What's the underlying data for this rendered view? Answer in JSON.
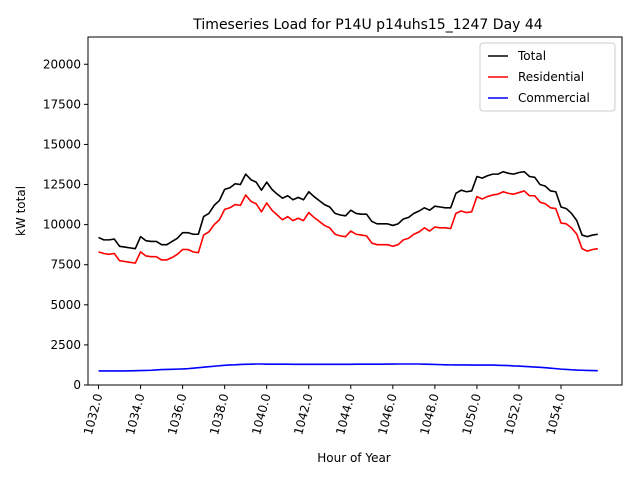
{
  "chart_data": {
    "type": "line",
    "title": "Timeseries Load for P14U p14uhs15_1247  Day 44",
    "xlabel": "Hour of Year",
    "ylabel": "kW total",
    "xlim": [
      1031.5,
      1056.9
    ],
    "ylim": [
      0,
      21700
    ],
    "xticks": [
      1032,
      1034,
      1036,
      1038,
      1040,
      1042,
      1044,
      1046,
      1048,
      1050,
      1052,
      1054
    ],
    "xtick_labels": [
      "1032.0",
      "1034.0",
      "1036.0",
      "1038.0",
      "1040.0",
      "1042.0",
      "1044.0",
      "1046.0",
      "1048.0",
      "1050.0",
      "1052.0",
      "1054.0"
    ],
    "yticks": [
      0,
      2500,
      5000,
      7500,
      10000,
      12500,
      15000,
      17500,
      20000
    ],
    "ytick_labels": [
      "0",
      "2500",
      "5000",
      "7500",
      "10000",
      "12500",
      "15000",
      "17500",
      "20000"
    ],
    "x_start": 1032.0,
    "x_step": 0.25,
    "legend_position": "upper right",
    "series": [
      {
        "name": "Total",
        "color": "#000000",
        "values": [
          9200,
          9050,
          9050,
          9100,
          8650,
          8600,
          8550,
          8500,
          9250,
          9000,
          8950,
          8950,
          8750,
          8750,
          8950,
          9150,
          9500,
          9500,
          9400,
          9400,
          10500,
          10700,
          11200,
          11500,
          12200,
          12300,
          12550,
          12500,
          13150,
          12800,
          12650,
          12150,
          12650,
          12200,
          11900,
          11650,
          11800,
          11550,
          11700,
          11550,
          12050,
          11750,
          11500,
          11250,
          11100,
          10700,
          10600,
          10550,
          10900,
          10700,
          10650,
          10650,
          10200,
          10050,
          10050,
          10050,
          9950,
          10050,
          10350,
          10450,
          10700,
          10850,
          11050,
          10900,
          11150,
          11100,
          11050,
          11050,
          11950,
          12150,
          12050,
          12100,
          13000,
          12900,
          13050,
          13150,
          13150,
          13300,
          13200,
          13150,
          13250,
          13300,
          13000,
          12950,
          12500,
          12400,
          12100,
          12050,
          11100,
          11000,
          10700,
          10250,
          9350,
          9250,
          9350,
          9400
        ]
      },
      {
        "name": "Residential",
        "color": "#ff0000",
        "values": [
          8300,
          8200,
          8150,
          8200,
          7750,
          7700,
          7650,
          7600,
          8300,
          8050,
          8000,
          8000,
          7800,
          7800,
          7950,
          8150,
          8450,
          8450,
          8300,
          8250,
          9350,
          9550,
          10000,
          10300,
          10950,
          11050,
          11250,
          11200,
          11850,
          11450,
          11300,
          10800,
          11350,
          10900,
          10600,
          10300,
          10500,
          10250,
          10400,
          10250,
          10750,
          10450,
          10200,
          9950,
          9800,
          9400,
          9300,
          9250,
          9600,
          9400,
          9350,
          9300,
          8850,
          8750,
          8750,
          8750,
          8650,
          8750,
          9050,
          9150,
          9400,
          9550,
          9800,
          9600,
          9850,
          9800,
          9800,
          9750,
          10700,
          10850,
          10750,
          10800,
          11750,
          11600,
          11750,
          11850,
          11900,
          12050,
          11950,
          11900,
          12000,
          12100,
          11800,
          11800,
          11400,
          11300,
          11050,
          11000,
          10100,
          10050,
          9800,
          9400,
          8500,
          8350,
          8450,
          8500
        ]
      },
      {
        "name": "Commercial",
        "color": "#0000ff",
        "values": [
          880,
          880,
          880,
          880,
          880,
          880,
          885,
          890,
          900,
          910,
          920,
          940,
          960,
          970,
          980,
          990,
          1000,
          1020,
          1050,
          1080,
          1110,
          1140,
          1170,
          1200,
          1230,
          1250,
          1260,
          1280,
          1290,
          1300,
          1310,
          1310,
          1300,
          1300,
          1295,
          1295,
          1295,
          1290,
          1290,
          1290,
          1290,
          1290,
          1290,
          1290,
          1290,
          1290,
          1290,
          1290,
          1290,
          1295,
          1295,
          1300,
          1300,
          1300,
          1300,
          1305,
          1305,
          1310,
          1310,
          1310,
          1310,
          1310,
          1300,
          1290,
          1280,
          1270,
          1260,
          1255,
          1250,
          1250,
          1250,
          1245,
          1240,
          1240,
          1240,
          1240,
          1230,
          1220,
          1210,
          1190,
          1180,
          1160,
          1140,
          1120,
          1100,
          1080,
          1050,
          1020,
          990,
          970,
          950,
          930,
          920,
          910,
          900,
          890
        ]
      }
    ]
  }
}
